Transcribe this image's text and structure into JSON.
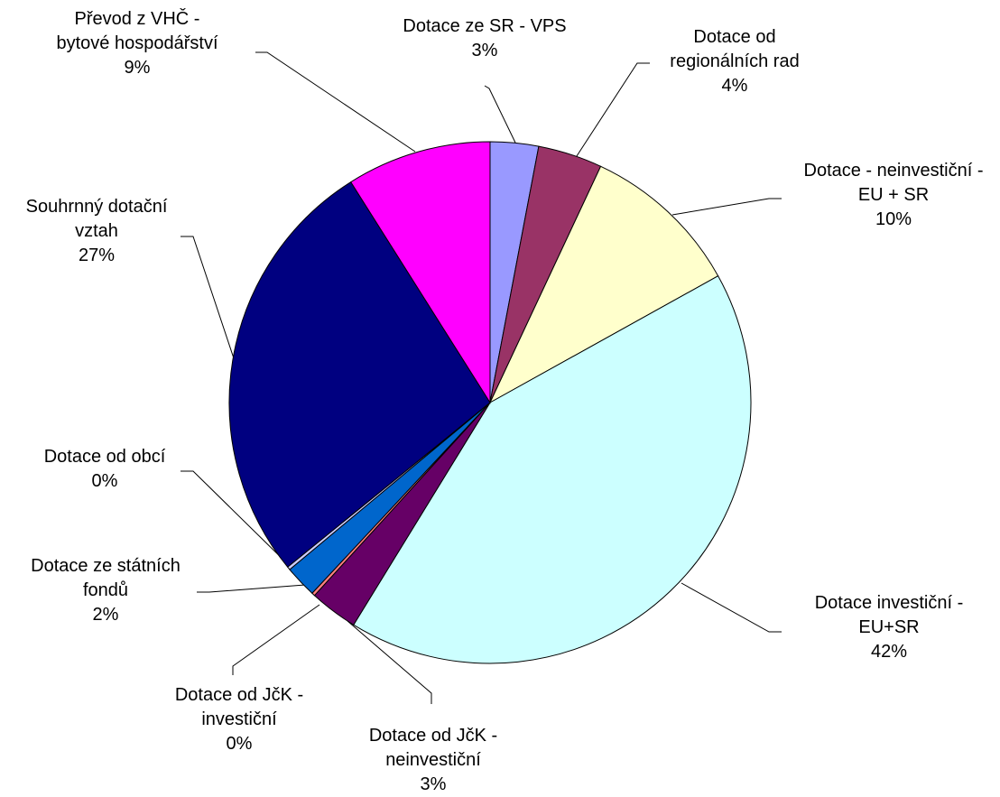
{
  "chart_data": {
    "type": "pie",
    "categories": [
      "Dotace ze SR - VPS",
      "Dotace od regionálních rad",
      "Dotace - neinvestiční - EU + SR",
      "Dotace investiční - EU+SR",
      "Dotace od JčK - neinvestiční",
      "Dotace od JčK - investiční",
      "Dotace ze státních fondů",
      "Dotace od obcí",
      "Souhrnný dotační vztah",
      "Převod z VHČ - bytové hospodářství"
    ],
    "values": [
      3,
      4,
      10,
      42,
      3,
      0.2,
      2,
      0.2,
      27,
      9
    ],
    "value_labels": [
      "3%",
      "4%",
      "10%",
      "42%",
      "3%",
      "0%",
      "2%",
      "0%",
      "27%",
      "9%"
    ],
    "colors": [
      "#9999ff",
      "#993366",
      "#ffffcc",
      "#ccffff",
      "#660066",
      "#ff8080",
      "#0066cc",
      "#ccccff",
      "#000080",
      "#ff00ff"
    ]
  }
}
